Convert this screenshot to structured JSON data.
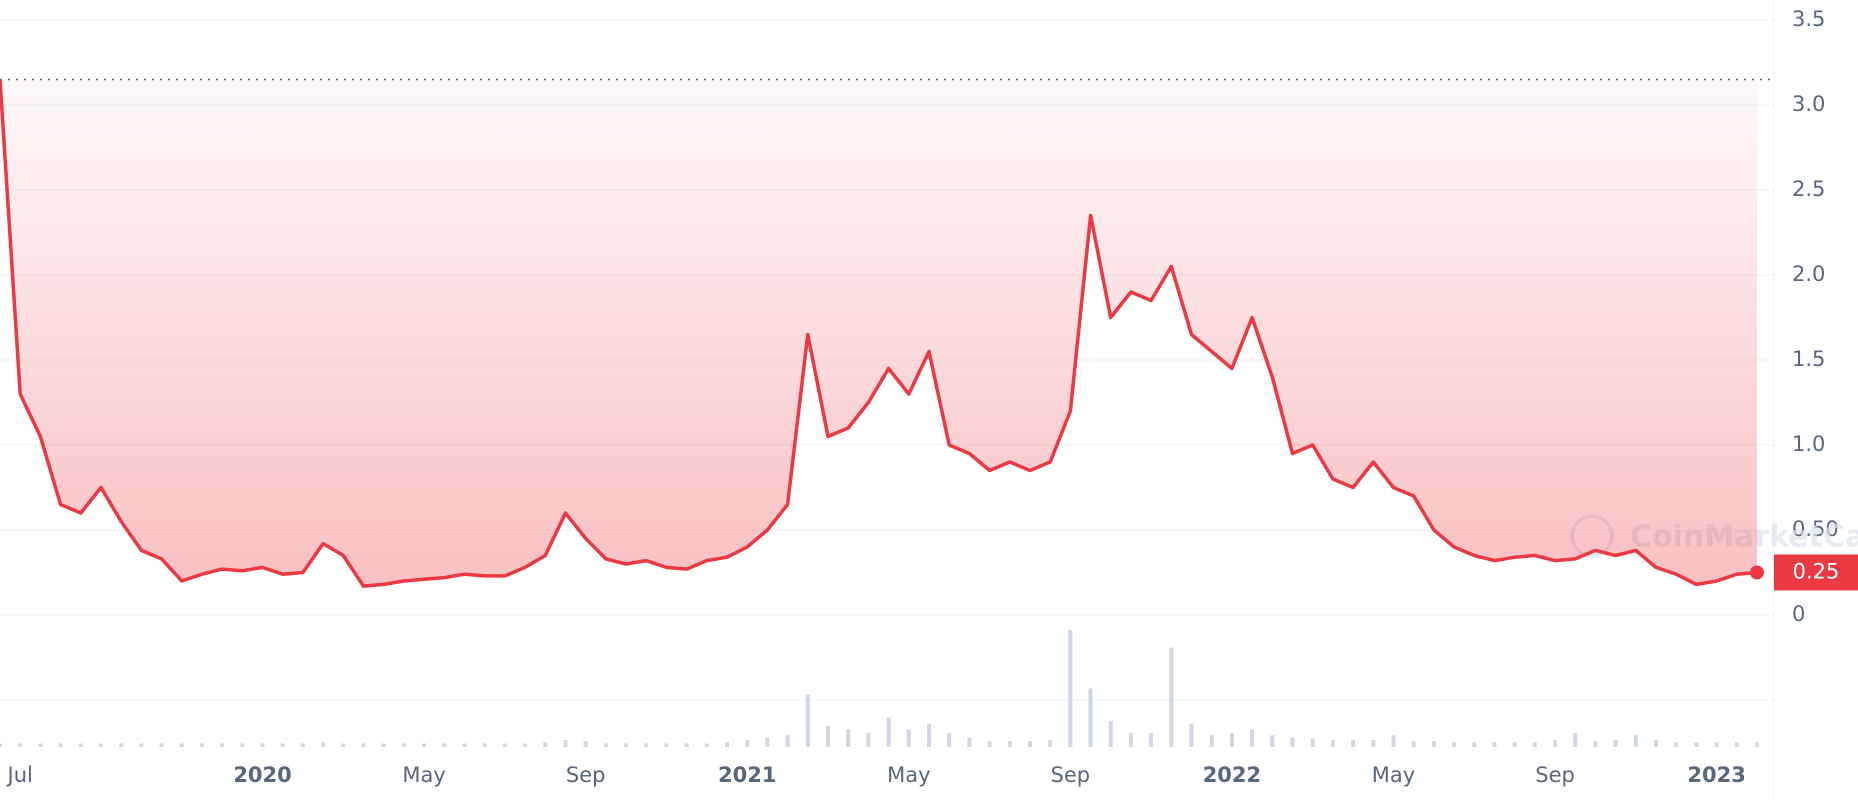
{
  "chart_data": {
    "type": "line",
    "color": "#ea3943",
    "categories": [
      null,
      "Jul",
      null,
      null,
      null,
      null,
      null,
      null,
      null,
      null,
      null,
      null,
      null,
      "2020",
      null,
      null,
      null,
      null,
      null,
      null,
      null,
      "May",
      null,
      null,
      null,
      null,
      null,
      null,
      null,
      "Sep",
      null,
      null,
      null,
      null,
      null,
      null,
      null,
      "2021",
      null,
      null,
      null,
      null,
      null,
      null,
      null,
      "May",
      null,
      null,
      null,
      null,
      null,
      null,
      null,
      "Sep",
      null,
      null,
      null,
      null,
      null,
      null,
      null,
      "2022",
      null,
      null,
      null,
      null,
      null,
      null,
      null,
      "May",
      null,
      null,
      null,
      null,
      null,
      null,
      null,
      "Sep",
      null,
      null,
      null,
      null,
      null,
      null,
      null,
      "2023",
      null,
      null
    ],
    "values": [
      3.15,
      1.3,
      1.05,
      0.65,
      0.6,
      0.75,
      0.55,
      0.38,
      0.33,
      0.2,
      0.24,
      0.27,
      0.26,
      0.28,
      0.24,
      0.25,
      0.42,
      0.35,
      0.17,
      0.18,
      0.2,
      0.21,
      0.22,
      0.24,
      0.23,
      0.23,
      0.28,
      0.35,
      0.6,
      0.45,
      0.33,
      0.3,
      0.32,
      0.28,
      0.27,
      0.32,
      0.34,
      0.4,
      0.5,
      0.65,
      1.65,
      1.05,
      1.1,
      1.25,
      1.45,
      1.3,
      1.55,
      1.0,
      0.95,
      0.85,
      0.9,
      0.85,
      0.9,
      1.2,
      2.35,
      1.75,
      1.9,
      1.85,
      2.05,
      1.65,
      1.55,
      1.45,
      1.75,
      1.4,
      0.95,
      1.0,
      0.8,
      0.75,
      0.9,
      0.75,
      0.7,
      0.5,
      0.4,
      0.35,
      0.32,
      0.34,
      0.35,
      0.32,
      0.33,
      0.38,
      0.35,
      0.38,
      0.28,
      0.24,
      0.18,
      0.2,
      0.24,
      0.25
    ],
    "volume": [
      0.03,
      0.03,
      0.03,
      0.03,
      0.03,
      0.03,
      0.03,
      0.03,
      0.03,
      0.03,
      0.03,
      0.03,
      0.03,
      0.03,
      0.03,
      0.03,
      0.04,
      0.03,
      0.03,
      0.03,
      0.03,
      0.03,
      0.03,
      0.03,
      0.03,
      0.03,
      0.03,
      0.04,
      0.06,
      0.05,
      0.03,
      0.03,
      0.03,
      0.03,
      0.03,
      0.03,
      0.04,
      0.06,
      0.08,
      0.1,
      0.45,
      0.18,
      0.15,
      0.12,
      0.25,
      0.15,
      0.2,
      0.12,
      0.08,
      0.05,
      0.05,
      0.05,
      0.06,
      1.0,
      0.5,
      0.22,
      0.12,
      0.12,
      0.85,
      0.2,
      0.1,
      0.12,
      0.15,
      0.1,
      0.08,
      0.07,
      0.06,
      0.06,
      0.06,
      0.1,
      0.05,
      0.05,
      0.04,
      0.04,
      0.04,
      0.04,
      0.04,
      0.06,
      0.12,
      0.05,
      0.06,
      0.1,
      0.06,
      0.04,
      0.04,
      0.04,
      0.04,
      0.04
    ],
    "ylim": [
      0,
      3.5
    ],
    "yticks": [
      0,
      {
        "value": 0.5,
        "label": "0.50"
      },
      {
        "value": 1,
        "label": "1.0"
      },
      1.5,
      {
        "value": 2,
        "label": "2.0"
      },
      2.5,
      {
        "value": 3,
        "label": "3.0"
      },
      3.5
    ],
    "grid": true,
    "current_price": 0.25,
    "watermark": "CoinMarketCap"
  }
}
